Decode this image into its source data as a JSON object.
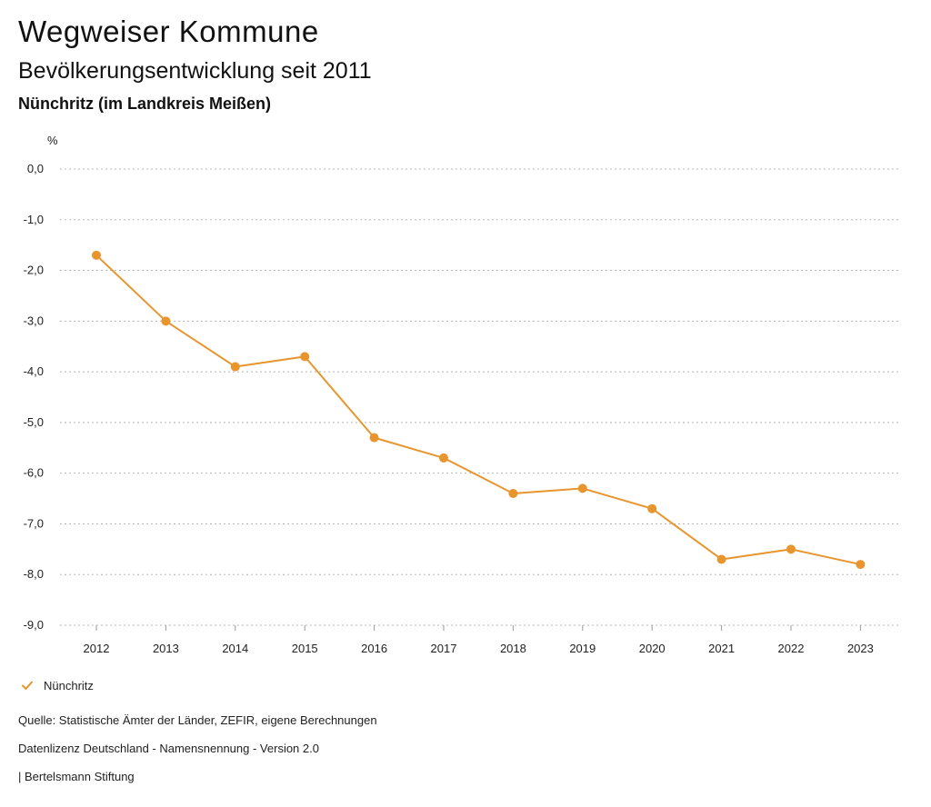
{
  "header": {
    "title": "Wegweiser Kommune",
    "subtitle": "Bevölkerungsentwicklung seit 2011",
    "region": "Nünchritz (im Landkreis Meißen)"
  },
  "chart_data": {
    "type": "line",
    "title": "Bevölkerungsentwicklung seit 2011",
    "xlabel": "",
    "ylabel": "%",
    "x": [
      "2012",
      "2013",
      "2014",
      "2015",
      "2016",
      "2017",
      "2018",
      "2019",
      "2020",
      "2021",
      "2022",
      "2023"
    ],
    "series": [
      {
        "name": "Nünchritz",
        "color": "#e8952e",
        "values": [
          -1.7,
          -3.0,
          -3.9,
          -3.7,
          -5.3,
          -5.7,
          -6.4,
          -6.3,
          -6.7,
          -7.7,
          -7.5,
          -7.8
        ]
      }
    ],
    "ylim": [
      -9.0,
      0.0
    ],
    "yticks": [
      0.0,
      -1.0,
      -2.0,
      -3.0,
      -4.0,
      -5.0,
      -6.0,
      -7.0,
      -8.0,
      -9.0
    ],
    "ytick_labels": [
      "0,0",
      "-1,0",
      "-2,0",
      "-3,0",
      "-4,0",
      "-5,0",
      "-6,0",
      "-7,0",
      "-8,0",
      "-9,0"
    ],
    "grid": true,
    "legend_position": "bottom-left"
  },
  "legend": {
    "items": [
      {
        "label": "Nünchritz",
        "icon": "check-icon"
      }
    ]
  },
  "footer": {
    "source": "Quelle: Statistische Ämter der Länder, ZEFIR, eigene Berechnungen",
    "license": "Datenlizenz Deutschland - Namensnennung - Version 2.0",
    "credit": "| Bertelsmann Stiftung"
  },
  "colors": {
    "series": "#e8952e",
    "grid": "#b5b5b5",
    "text": "#111111"
  }
}
